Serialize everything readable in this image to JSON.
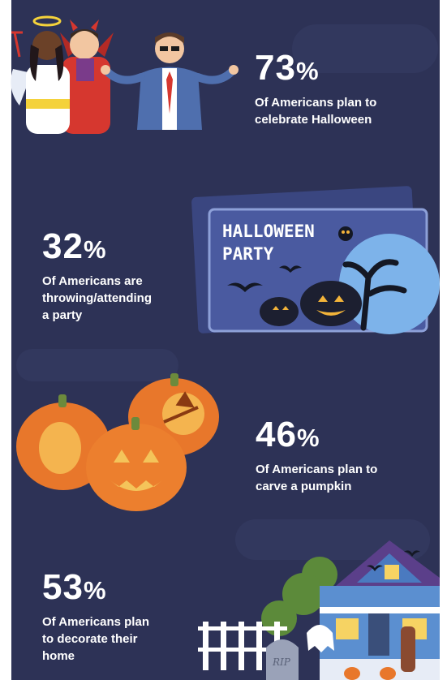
{
  "stats": [
    {
      "value": "73",
      "sign": "%",
      "text": "Of Americans plan to\ncelebrate Halloween"
    },
    {
      "value": "32",
      "sign": "%",
      "text": "Of Americans are\nthrowing/attending\na party"
    },
    {
      "value": "46",
      "sign": "%",
      "text": "Of Americans plan to\ncarve a pumpkin"
    },
    {
      "value": "53",
      "sign": "%",
      "text": "Of Americans plan\nto decorate their\nhome"
    }
  ],
  "party_sign": {
    "line1": "HALLOWEEN",
    "line2": "PARTY"
  },
  "gravestone": {
    "label": "RIP"
  },
  "colors": {
    "background": "#2d3256",
    "text": "#ffffff",
    "pumpkin": "#e8772b",
    "sign_blue": "#3d4a86",
    "moon": "#7db3ea"
  },
  "icons": [
    "angel-costume",
    "devil-costume",
    "shrugging-man",
    "party-sign",
    "carved-pumpkins",
    "haunted-house"
  ]
}
